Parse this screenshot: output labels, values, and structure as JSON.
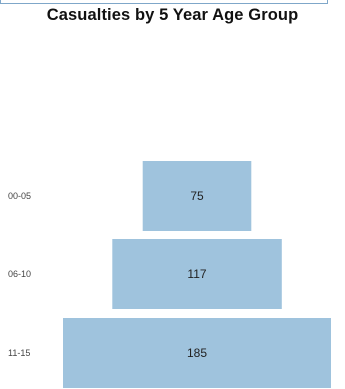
{
  "chart_data": {
    "type": "bar",
    "orientation": "horizontal-centered",
    "title": "Casualties by 5 Year Age Group",
    "categories": [
      "00-05",
      "06-10",
      "11-15"
    ],
    "values": [
      75,
      117,
      185
    ],
    "bar_color": "#9fc3dd",
    "grid": false,
    "legend": "none"
  }
}
